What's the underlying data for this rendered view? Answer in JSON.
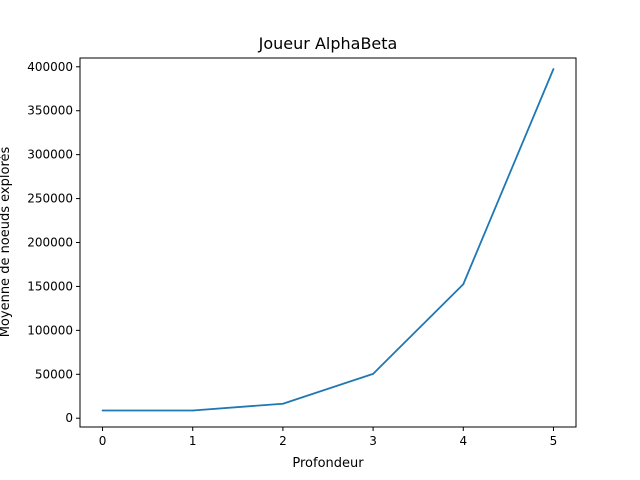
{
  "chart_data": {
    "type": "line",
    "title": "Joueur AlphaBeta",
    "xlabel": "Profondeur",
    "ylabel": "Moyenne de noeuds explorés",
    "x": [
      0,
      1,
      2,
      3,
      4,
      5
    ],
    "xlim": [
      -0.25,
      5.25
    ],
    "ylim": [
      -10000,
      410000
    ],
    "xticks": [
      0,
      1,
      2,
      3,
      4,
      5
    ],
    "xtick_labels": [
      "0",
      "1",
      "2",
      "3",
      "4",
      "5"
    ],
    "yticks": [
      0,
      50000,
      100000,
      150000,
      200000,
      250000,
      300000,
      350000,
      400000
    ],
    "ytick_labels": [
      "0",
      "50000",
      "100000",
      "150000",
      "200000",
      "250000",
      "300000",
      "350000",
      "400000"
    ],
    "series": [
      {
        "name": "AlphaBeta",
        "color": "#1f77b4",
        "values": [
          8800,
          8800,
          16500,
          50500,
          152500,
          397500
        ]
      }
    ],
    "grid": false,
    "legend": "none"
  }
}
